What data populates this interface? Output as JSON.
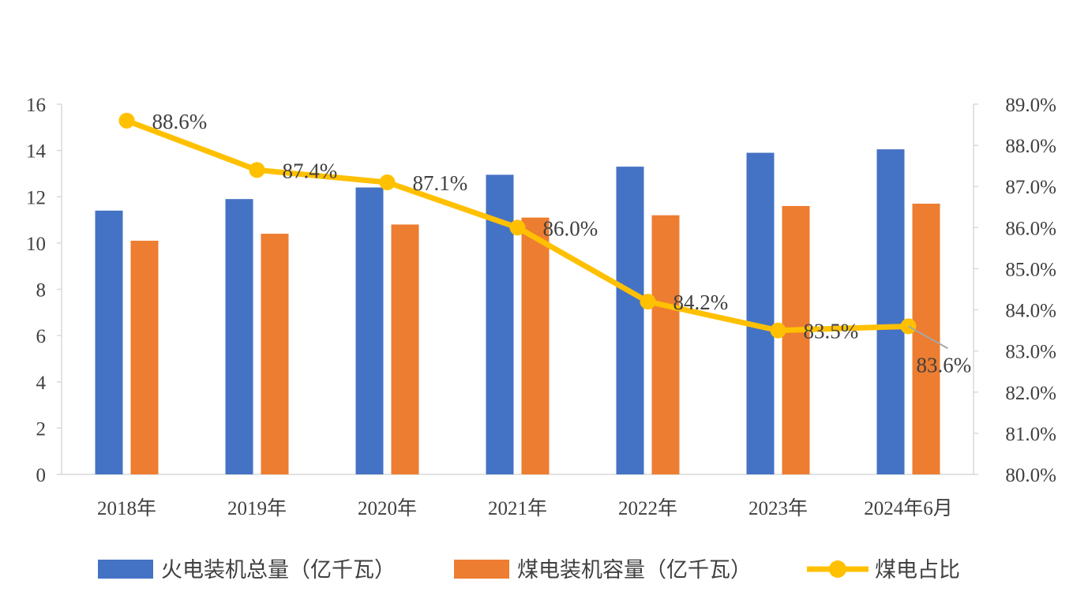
{
  "chart_data": {
    "type": "bar",
    "categories": [
      "2018年",
      "2019年",
      "2020年",
      "2021年",
      "2022年",
      "2023年",
      "2024年6月"
    ],
    "series": [
      {
        "name": "火电装机总量（亿千瓦）",
        "type": "bar",
        "axis": "left",
        "color": "#4472C4",
        "values": [
          11.4,
          11.9,
          12.4,
          12.95,
          13.3,
          13.9,
          14.05
        ]
      },
      {
        "name": "煤电装机容量（亿千瓦）",
        "type": "bar",
        "axis": "left",
        "color": "#ED7D31",
        "values": [
          10.1,
          10.4,
          10.8,
          11.1,
          11.2,
          11.6,
          11.7
        ]
      },
      {
        "name": "煤电占比",
        "type": "line",
        "axis": "right",
        "color": "#FFC000",
        "values": [
          88.6,
          87.4,
          87.1,
          86.0,
          84.2,
          83.5,
          83.6
        ],
        "labels": [
          "88.6%",
          "87.4%",
          "87.1%",
          "86.0%",
          "84.2%",
          "83.5%",
          "83.6%"
        ]
      }
    ],
    "y_left": {
      "min": 0,
      "max": 16,
      "ticks": [
        "0",
        "2",
        "4",
        "6",
        "8",
        "10",
        "12",
        "14",
        "16"
      ]
    },
    "y_right": {
      "min": 80,
      "max": 89,
      "ticks": [
        "80.0%",
        "81.0%",
        "82.0%",
        "83.0%",
        "84.0%",
        "85.0%",
        "86.0%",
        "87.0%",
        "88.0%",
        "89.0%"
      ]
    },
    "legend_position": "bottom",
    "grid": false
  }
}
